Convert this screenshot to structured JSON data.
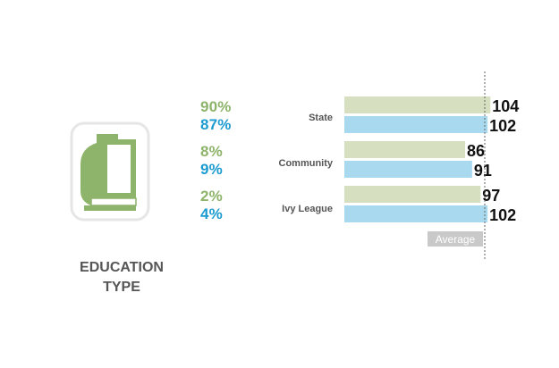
{
  "title": [
    "EDUCATION",
    "TYPE"
  ],
  "colors": {
    "series1_text": "#8db46a",
    "series2_text": "#1c9bd0",
    "series1_bar": "#d6dfc0",
    "series2_bar": "#a9d9ef",
    "icon_green": "#8db46a",
    "average_label_bg": "#c9c9c9"
  },
  "icon": "book-icon",
  "chart_data": {
    "type": "bar",
    "orientation": "horizontal",
    "categories": [
      "State",
      "Community",
      "Ivy League"
    ],
    "series": [
      {
        "values": [
          104,
          86,
          97
        ],
        "shares": [
          "90%",
          "8%",
          "2%"
        ]
      },
      {
        "values": [
          102,
          91,
          102
        ],
        "shares": [
          "87%",
          "9%",
          "4%"
        ]
      }
    ],
    "reference_line": {
      "label": "Average",
      "value": 100
    },
    "xlim": [
      0,
      100
    ]
  }
}
